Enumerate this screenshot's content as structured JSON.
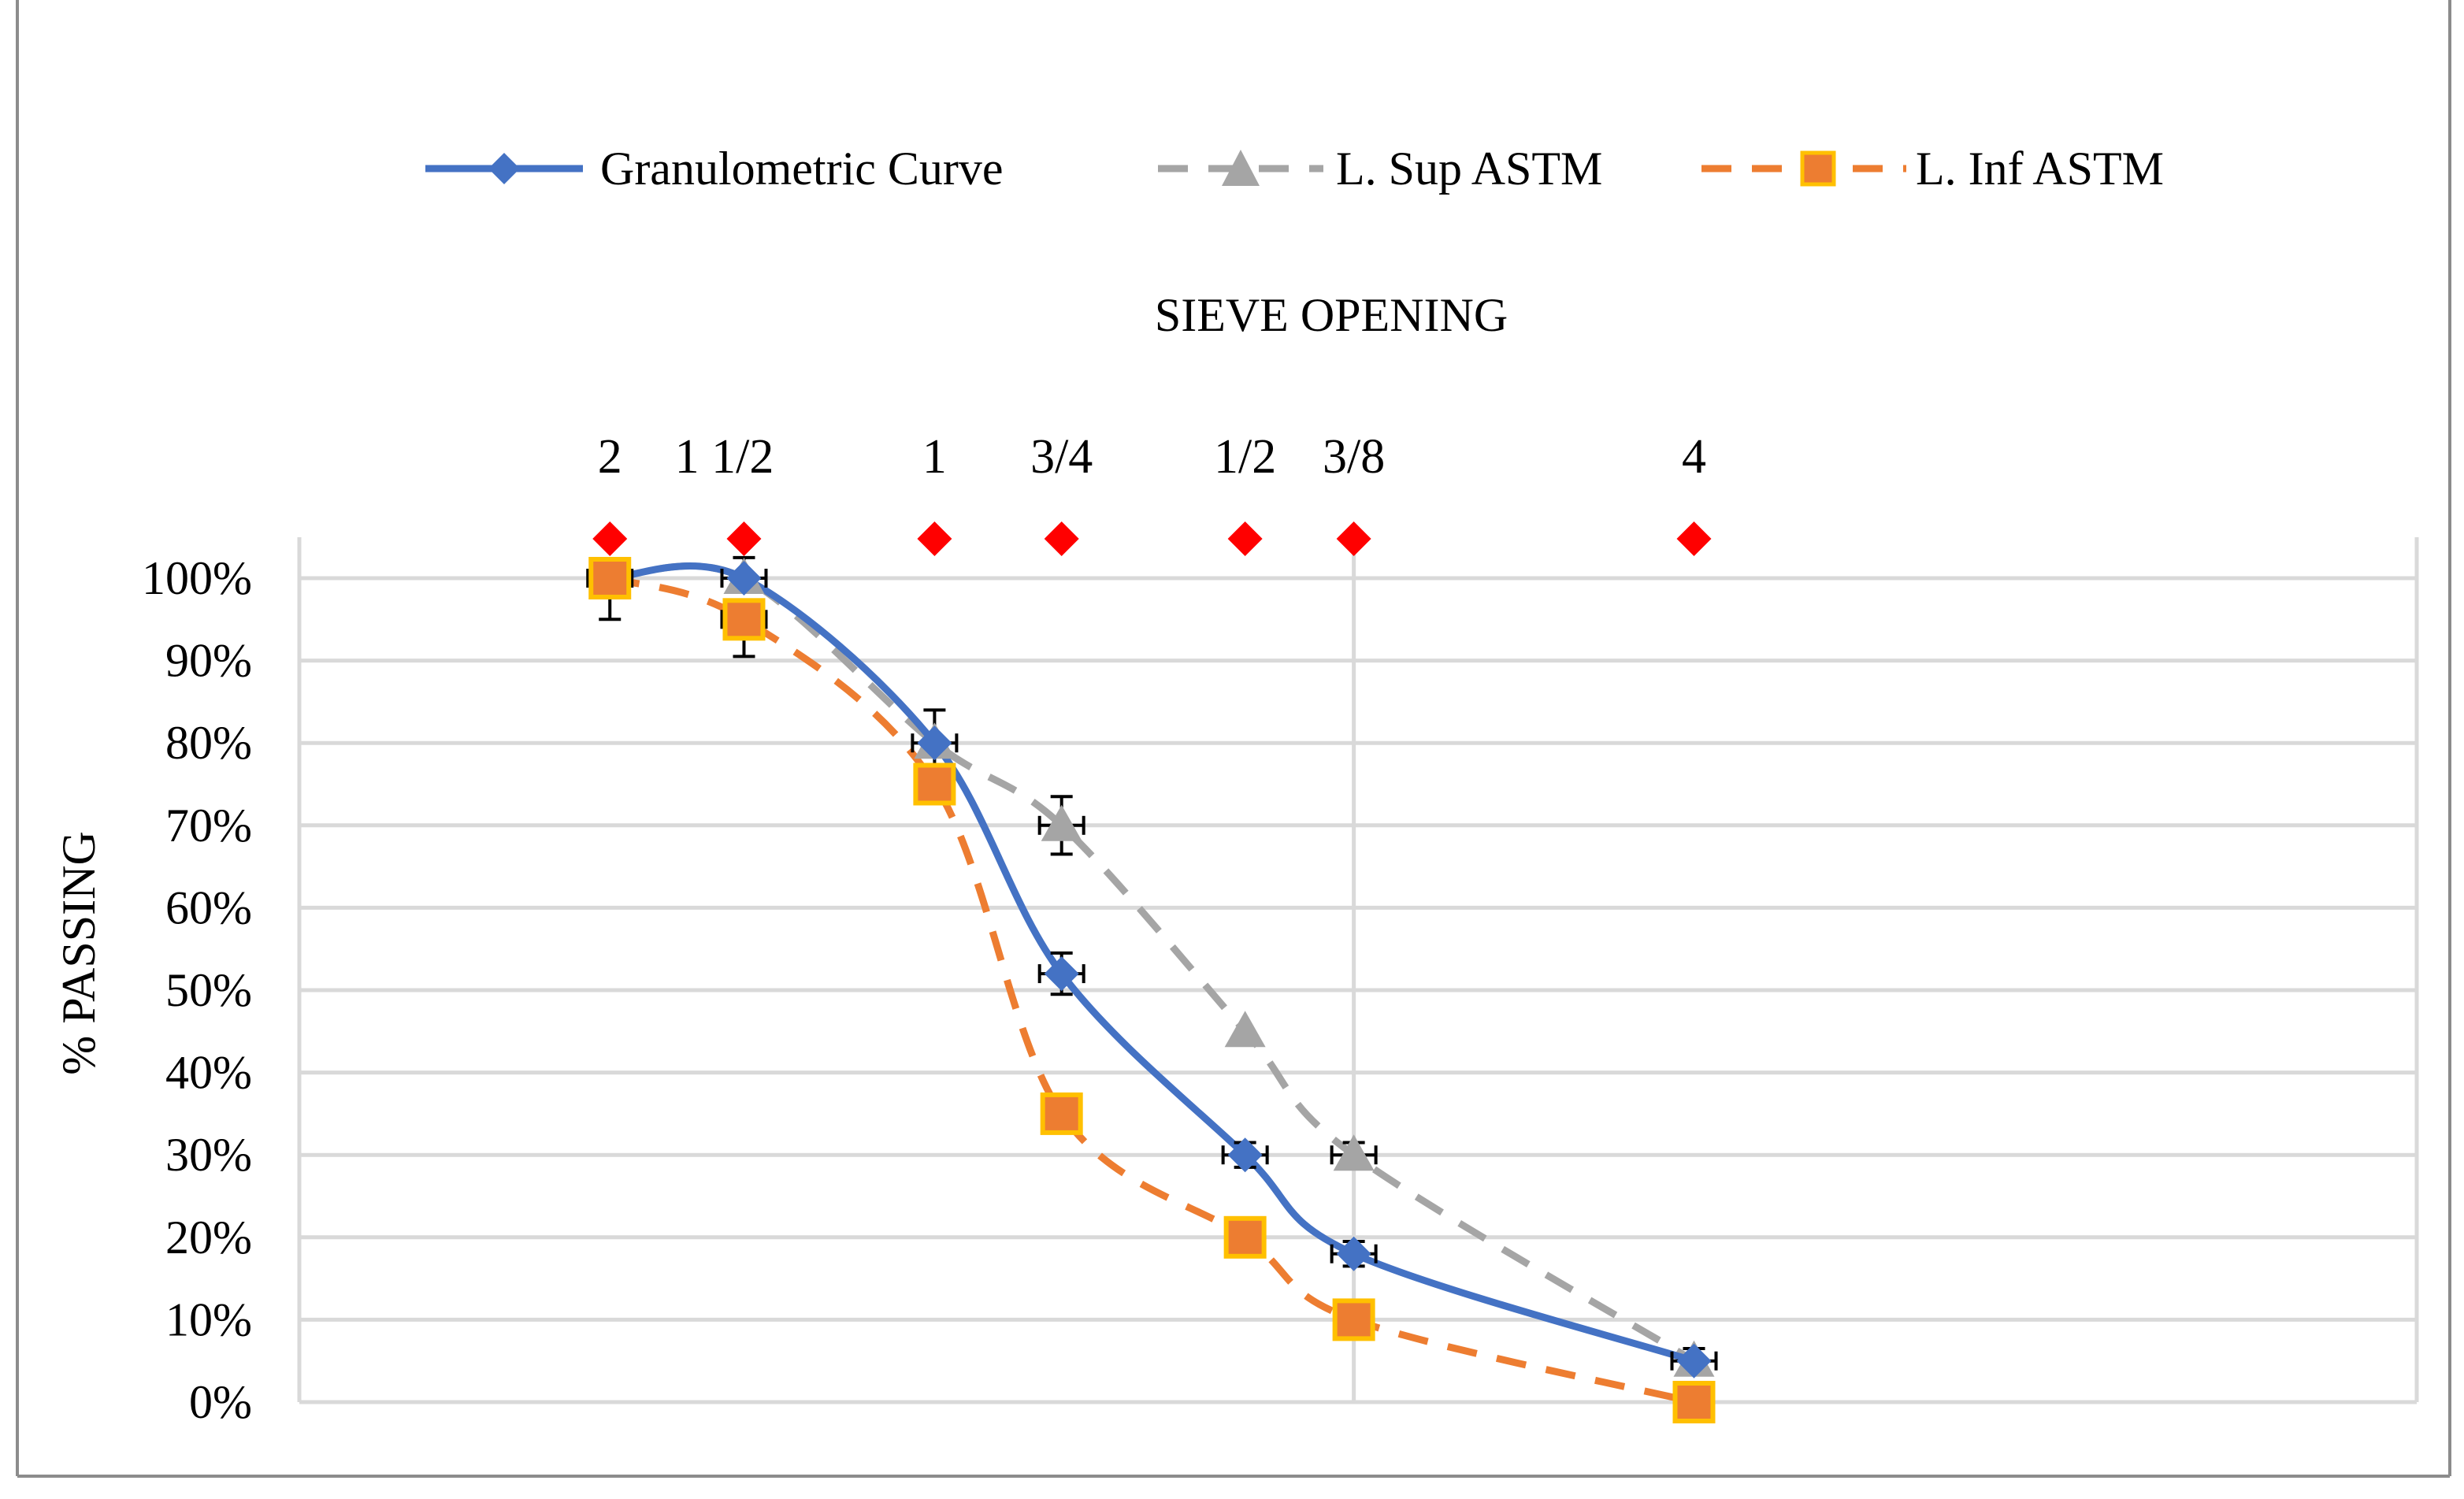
{
  "chart_data": {
    "type": "line",
    "top_axis_title": "SIEVE OPENING",
    "ylabel": "%  PASSING",
    "ylim": [
      0,
      1
    ],
    "ytick_step": 0.1,
    "xlim": [
      0,
      15
    ],
    "x": [
      2.2,
      3.15,
      4.5,
      5.4,
      6.7,
      7.47,
      9.88
    ],
    "sieve_labels": [
      "2",
      "1 1/2",
      "1",
      "3/4",
      "1/2",
      "3/8",
      "4"
    ],
    "sieve_marker_color": "#ff0000",
    "series": [
      {
        "name": "Granulometric Curve",
        "style": "solid",
        "marker": "diamond",
        "color": "#4472c4",
        "values": [
          1.0,
          1.0,
          0.8,
          0.52,
          0.3,
          0.18,
          0.05
        ]
      },
      {
        "name": "L. Sup ASTM",
        "style": "dashed",
        "marker": "triangle",
        "color": "#a5a5a5",
        "values": [
          1.0,
          1.0,
          0.8,
          0.7,
          0.45,
          0.3,
          0.05
        ]
      },
      {
        "name": "L. Inf ASTM",
        "style": "dashed",
        "marker": "square",
        "color": "#ed7d31",
        "marker_edge": "#ffc000",
        "values": [
          1.0,
          0.95,
          0.75,
          0.35,
          0.2,
          0.1,
          0.0
        ]
      }
    ],
    "errorbars": [
      {
        "x": 2.2,
        "y": 1.0,
        "low": 0.95,
        "high": 1.0
      },
      {
        "x": 3.15,
        "y": 1.0,
        "low": 1.0,
        "high": 1.025
      },
      {
        "x": 3.15,
        "y": 0.95,
        "low": 0.905,
        "high": 0.95
      },
      {
        "x": 4.5,
        "y": 0.8,
        "low": 0.765,
        "high": 0.84
      },
      {
        "x": 5.4,
        "y": 0.7,
        "low": 0.665,
        "high": 0.735
      },
      {
        "x": 5.4,
        "y": 0.52,
        "low": 0.495,
        "high": 0.545
      },
      {
        "x": 6.7,
        "y": 0.3,
        "low": 0.285,
        "high": 0.315
      },
      {
        "x": 7.47,
        "y": 0.3,
        "low": 0.285,
        "high": 0.315
      },
      {
        "x": 7.47,
        "y": 0.18,
        "low": 0.165,
        "high": 0.195
      },
      {
        "x": 9.88,
        "y": 0.05,
        "low": 0.035,
        "high": 0.065
      }
    ]
  }
}
